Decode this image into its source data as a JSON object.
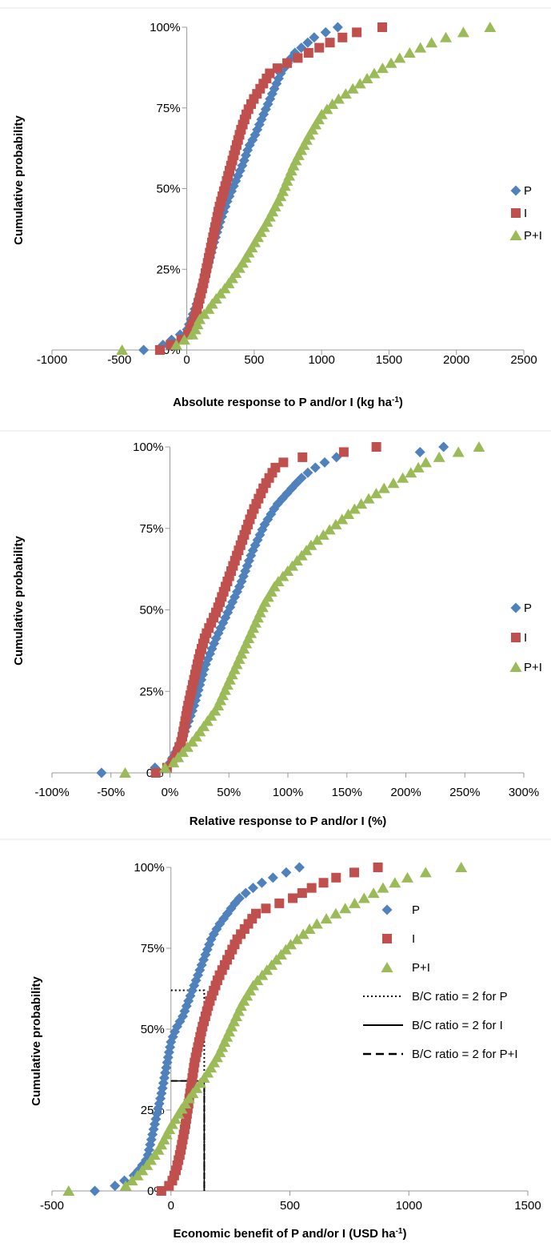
{
  "chart_data": [
    {
      "type": "scatter",
      "xlabel": "Absolute response to P and/or I (kg ha",
      "xlabel_sup": "-1",
      "xlabel_end": ")",
      "ylabel": "Cumulative probability",
      "xlim": [
        -1000,
        2500
      ],
      "ylim": [
        0,
        1
      ],
      "x_ticks": [
        "-1000",
        "-500",
        "0",
        "500",
        "1000",
        "1500",
        "2000",
        "2500"
      ],
      "y_ticks": [
        "0%",
        "25%",
        "50%",
        "75%",
        "100%"
      ],
      "legend": {
        "position": "right",
        "entries": [
          "P",
          "I",
          "P+I"
        ]
      },
      "series": [
        {
          "name": "P",
          "color": "#4f81bd",
          "marker": "diamond",
          "n": 64,
          "x": [
            -320,
            -200,
            0,
            80,
            150,
            200,
            250,
            300,
            340,
            380,
            420,
            460,
            500,
            560,
            620,
            700,
            800,
            950,
            1120
          ],
          "y": [
            0.0,
            0.01,
            0.06,
            0.15,
            0.25,
            0.33,
            0.4,
            0.46,
            0.5,
            0.54,
            0.58,
            0.63,
            0.66,
            0.72,
            0.78,
            0.86,
            0.92,
            0.97,
            1.0
          ]
        },
        {
          "name": "I",
          "color": "#c0504d",
          "marker": "square",
          "n": 64,
          "x": [
            -200,
            0,
            60,
            120,
            160,
            200,
            240,
            280,
            320,
            360,
            400,
            450,
            500,
            560,
            620,
            700,
            900,
            1100,
            1300,
            1450
          ],
          "y": [
            0.0,
            0.04,
            0.1,
            0.2,
            0.28,
            0.36,
            0.44,
            0.5,
            0.56,
            0.62,
            0.68,
            0.74,
            0.78,
            0.82,
            0.86,
            0.88,
            0.92,
            0.96,
            0.99,
            1.0
          ]
        },
        {
          "name": "P+I",
          "color": "#9bbb59",
          "marker": "triangle",
          "n": 64,
          "x": [
            -480,
            -100,
            50,
            100,
            150,
            200,
            300,
            400,
            500,
            600,
            700,
            800,
            900,
            1000,
            1100,
            1200,
            1400,
            1600,
            1800,
            2000,
            2250
          ],
          "y": [
            0.0,
            0.01,
            0.05,
            0.1,
            0.12,
            0.15,
            0.2,
            0.26,
            0.33,
            0.4,
            0.48,
            0.58,
            0.66,
            0.73,
            0.77,
            0.8,
            0.86,
            0.91,
            0.95,
            0.98,
            1.0
          ]
        }
      ]
    },
    {
      "type": "scatter",
      "xlabel": "Relative response to P and/or I (%)",
      "ylabel": "Cumulative probability",
      "xlim": [
        -100,
        300
      ],
      "ylim": [
        0,
        1
      ],
      "x_ticks": [
        "-100%",
        "-50%",
        "0%",
        "50%",
        "100%",
        "150%",
        "200%",
        "250%",
        "300%"
      ],
      "y_ticks": [
        "0%",
        "25%",
        "50%",
        "75%",
        "100%"
      ],
      "legend": {
        "position": "right",
        "entries": [
          "P",
          "I",
          "P+I"
        ]
      },
      "series": [
        {
          "name": "P",
          "color": "#4f81bd",
          "marker": "diamond",
          "n": 64,
          "x": [
            -58,
            -18,
            0,
            10,
            20,
            30,
            40,
            50,
            60,
            70,
            80,
            90,
            100,
            110,
            120,
            135,
            150,
            205,
            222,
            232
          ],
          "y": [
            0.0,
            0.01,
            0.03,
            0.1,
            0.2,
            0.33,
            0.42,
            0.5,
            0.58,
            0.68,
            0.76,
            0.82,
            0.86,
            0.9,
            0.93,
            0.96,
            0.98,
            0.98,
            0.99,
            1.0
          ]
        },
        {
          "name": "I",
          "color": "#c0504d",
          "marker": "square",
          "n": 64,
          "x": [
            -12,
            0,
            5,
            10,
            15,
            20,
            25,
            30,
            40,
            50,
            60,
            70,
            80,
            90,
            100,
            115,
            135,
            165,
            175
          ],
          "y": [
            0.0,
            0.02,
            0.05,
            0.1,
            0.2,
            0.28,
            0.36,
            0.42,
            0.5,
            0.6,
            0.7,
            0.8,
            0.88,
            0.94,
            0.96,
            0.97,
            0.98,
            0.99,
            1.0
          ]
        },
        {
          "name": "P+I",
          "color": "#9bbb59",
          "marker": "triangle",
          "n": 64,
          "x": [
            -38,
            -10,
            0,
            10,
            20,
            30,
            40,
            50,
            60,
            70,
            80,
            90,
            100,
            120,
            140,
            160,
            180,
            200,
            220,
            240,
            262
          ],
          "y": [
            0.0,
            0.01,
            0.02,
            0.06,
            0.1,
            0.15,
            0.2,
            0.28,
            0.36,
            0.44,
            0.52,
            0.58,
            0.62,
            0.7,
            0.76,
            0.82,
            0.87,
            0.91,
            0.96,
            0.98,
            1.0
          ]
        }
      ]
    },
    {
      "type": "scatter",
      "xlabel": "Economic benefit of P and/or I (USD ha",
      "xlabel_sup": "-1",
      "xlabel_end": ")",
      "ylabel": "Cumulative probability",
      "xlim": [
        -500,
        1500
      ],
      "ylim": [
        0,
        1
      ],
      "x_ticks": [
        "-500",
        "0",
        "500",
        "1000",
        "1500"
      ],
      "y_ticks": [
        "0%",
        "25%",
        "50%",
        "75%",
        "100%"
      ],
      "legend": {
        "position": "right",
        "entries": [
          "P",
          "I",
          "P+I",
          "B/C ratio = 2 for P",
          "B/C ratio = 2 for I",
          "B/C ratio = 2 for P+I"
        ]
      },
      "series": [
        {
          "name": "P",
          "color": "#4f81bd",
          "marker": "diamond",
          "n": 64,
          "x": [
            -320,
            -250,
            -150,
            -100,
            -70,
            -40,
            -20,
            0,
            20,
            50,
            80,
            110,
            140,
            170,
            200,
            240,
            280,
            330,
            400,
            470,
            540
          ],
          "y": [
            0.0,
            0.01,
            0.05,
            0.1,
            0.2,
            0.3,
            0.38,
            0.46,
            0.5,
            0.54,
            0.6,
            0.66,
            0.72,
            0.78,
            0.82,
            0.86,
            0.9,
            0.93,
            0.96,
            0.98,
            1.0
          ]
        },
        {
          "name": "I",
          "color": "#c0504d",
          "marker": "square",
          "n": 64,
          "x": [
            -40,
            0,
            20,
            40,
            60,
            80,
            100,
            130,
            160,
            200,
            240,
            280,
            320,
            360,
            420,
            500,
            600,
            700,
            800,
            870
          ],
          "y": [
            0.0,
            0.02,
            0.06,
            0.12,
            0.2,
            0.3,
            0.4,
            0.5,
            0.58,
            0.66,
            0.72,
            0.78,
            0.82,
            0.86,
            0.88,
            0.9,
            0.94,
            0.97,
            0.99,
            1.0
          ]
        },
        {
          "name": "P+I",
          "color": "#9bbb59",
          "marker": "triangle",
          "n": 64,
          "x": [
            -430,
            -200,
            -150,
            -100,
            -50,
            0,
            50,
            100,
            150,
            200,
            250,
            300,
            350,
            400,
            450,
            500,
            600,
            700,
            800,
            900,
            1000,
            1100,
            1220
          ],
          "y": [
            0.0,
            0.01,
            0.04,
            0.08,
            0.13,
            0.2,
            0.26,
            0.31,
            0.36,
            0.42,
            0.5,
            0.58,
            0.64,
            0.68,
            0.72,
            0.76,
            0.82,
            0.86,
            0.9,
            0.94,
            0.97,
            0.99,
            1.0
          ]
        }
      ],
      "reference_lines": [
        {
          "name": "B/C ratio = 2 for P",
          "style": "dotted",
          "x": 140,
          "y": 0.62
        },
        {
          "name": "B/C ratio = 2 for I",
          "style": "solid",
          "x": 140,
          "y": 0.34
        },
        {
          "name": "B/C ratio = 2 for P+I",
          "style": "dashed",
          "x": 140,
          "y": 0.34
        }
      ]
    }
  ]
}
